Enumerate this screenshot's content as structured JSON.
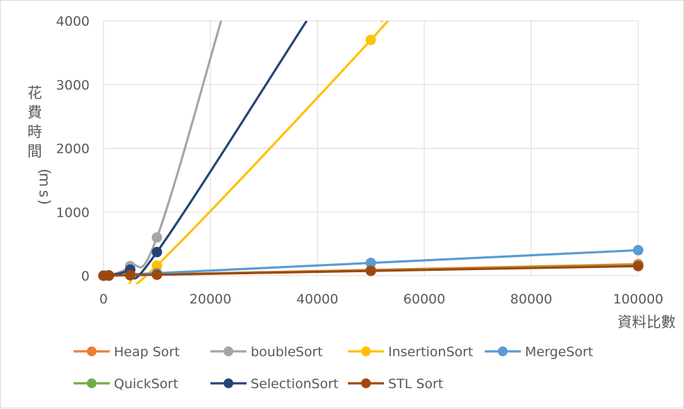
{
  "chart_data": {
    "type": "line",
    "title": "",
    "xlabel": "資料比數",
    "ylabel": "花費時間(ms)",
    "xlim": [
      0,
      100000
    ],
    "ylim": [
      0,
      4000
    ],
    "xticks": [
      "0",
      "20000",
      "40000",
      "60000",
      "80000",
      "100000"
    ],
    "yticks": [
      "0",
      "1000",
      "2000",
      "3000",
      "4000"
    ],
    "grid": true,
    "legend_position": "bottom",
    "series": [
      {
        "name": "Heap Sort",
        "color": "#ED7D31",
        "points": [
          [
            0,
            0
          ],
          [
            1000,
            2
          ],
          [
            5000,
            10
          ],
          [
            10000,
            20
          ],
          [
            50000,
            90
          ],
          [
            100000,
            180
          ]
        ]
      },
      {
        "name": "boubleSort",
        "color": "#A5A5A5",
        "points": [
          [
            0,
            0
          ],
          [
            1000,
            6
          ],
          [
            5000,
            150
          ],
          [
            10000,
            600
          ],
          [
            22000,
            4000
          ]
        ]
      },
      {
        "name": "InsertionSort",
        "color": "#FFC000",
        "points": [
          [
            0,
            0
          ],
          [
            1000,
            2
          ],
          [
            5000,
            40
          ],
          [
            10000,
            160
          ],
          [
            50000,
            3700
          ],
          [
            52000,
            4000
          ]
        ]
      },
      {
        "name": "MergeSort",
        "color": "#5B9BD5",
        "points": [
          [
            0,
            0
          ],
          [
            1000,
            4
          ],
          [
            5000,
            20
          ],
          [
            10000,
            40
          ],
          [
            50000,
            200
          ],
          [
            100000,
            400
          ]
        ]
      },
      {
        "name": "QuickSort",
        "color": "#70AD47",
        "points": [
          [
            0,
            0
          ],
          [
            1000,
            1
          ],
          [
            5000,
            8
          ],
          [
            10000,
            16
          ],
          [
            50000,
            80
          ],
          [
            100000,
            160
          ]
        ]
      },
      {
        "name": "SelectionSort",
        "color": "#264478",
        "points": [
          [
            0,
            0
          ],
          [
            1000,
            4
          ],
          [
            5000,
            95
          ],
          [
            10000,
            370
          ],
          [
            38000,
            4000
          ]
        ]
      },
      {
        "name": "STL Sort",
        "color": "#9E480E",
        "points": [
          [
            0,
            0
          ],
          [
            1000,
            1
          ],
          [
            5000,
            8
          ],
          [
            10000,
            15
          ],
          [
            50000,
            75
          ],
          [
            100000,
            150
          ]
        ]
      }
    ]
  }
}
